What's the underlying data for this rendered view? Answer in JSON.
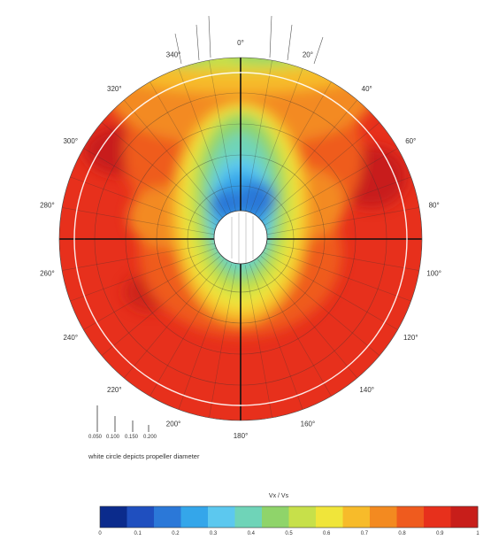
{
  "chart_data": {
    "type": "heatmap",
    "subtype": "polar-contour",
    "angle_labels": [
      "0°",
      "20°",
      "40°",
      "60°",
      "80°",
      "100°",
      "120°",
      "140°",
      "160°",
      "180°",
      "200°",
      "220°",
      "240°",
      "260°",
      "280°",
      "300°",
      "320°",
      "340°"
    ],
    "colorbar": {
      "title": "Vx / Vs",
      "min": 0,
      "max": 1,
      "ticks": [
        "0",
        "0.1",
        "0.2",
        "0.3",
        "0.4",
        "0.5",
        "0.6",
        "0.7",
        "0.8",
        "0.9",
        "1"
      ],
      "colors": [
        "#0b2b8c",
        "#1f4fbf",
        "#2b78d8",
        "#34a6ea",
        "#5cc8ef",
        "#6fd4b8",
        "#8fd46a",
        "#c7e04a",
        "#f0e53a",
        "#f7bb2a",
        "#f38a20",
        "#ef5b1e",
        "#e7301c",
        "#c81e1a"
      ]
    },
    "scale_labels": [
      "0.050",
      "0.100",
      "0.150",
      "0.200"
    ],
    "note": "white circle depicts propeller diameter",
    "grid": true
  }
}
